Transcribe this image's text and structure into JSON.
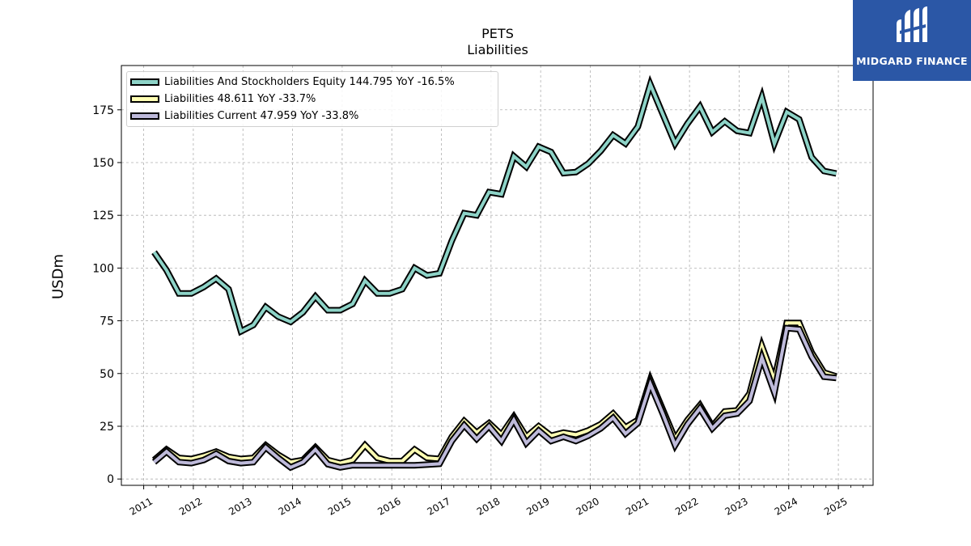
{
  "chart_data": {
    "type": "line",
    "title": "PETS",
    "subtitle": "Liabilities",
    "xlabel": "",
    "ylabel": "USDm",
    "xlim": [
      2010.55,
      2025.7
    ],
    "ylim": [
      -3,
      196
    ],
    "yticks": [
      0,
      25,
      50,
      75,
      100,
      125,
      150,
      175
    ],
    "xticks": [
      "2011",
      "2012",
      "2013",
      "2014",
      "2015",
      "2016",
      "2017",
      "2018",
      "2019",
      "2020",
      "2021",
      "2022",
      "2023",
      "2024",
      "2025"
    ],
    "grid": true,
    "legend_position": "top-left",
    "series": [
      {
        "name": "Liabilities And Stockholders Equity",
        "legend_label": "Liabilities And Stockholders Equity  144.795 YoY -16.5%",
        "color": "#8dd3c7",
        "points": [
          [
            2011.21,
            107.5
          ],
          [
            2011.46,
            99
          ],
          [
            2011.71,
            88
          ],
          [
            2011.96,
            88
          ],
          [
            2012.21,
            91
          ],
          [
            2012.46,
            95
          ],
          [
            2012.71,
            90
          ],
          [
            2012.96,
            70
          ],
          [
            2013.21,
            73
          ],
          [
            2013.46,
            81.5
          ],
          [
            2013.71,
            77
          ],
          [
            2013.96,
            74.5
          ],
          [
            2014.21,
            79
          ],
          [
            2014.46,
            86.5
          ],
          [
            2014.71,
            80
          ],
          [
            2014.96,
            80
          ],
          [
            2015.21,
            83
          ],
          [
            2015.46,
            94
          ],
          [
            2015.71,
            88
          ],
          [
            2015.96,
            88
          ],
          [
            2016.21,
            90
          ],
          [
            2016.46,
            100
          ],
          [
            2016.71,
            96.5
          ],
          [
            2016.96,
            97.5
          ],
          [
            2017.21,
            113
          ],
          [
            2017.46,
            126
          ],
          [
            2017.71,
            125
          ],
          [
            2017.96,
            136
          ],
          [
            2018.21,
            135
          ],
          [
            2018.46,
            153
          ],
          [
            2018.71,
            148
          ],
          [
            2018.96,
            157.5
          ],
          [
            2019.21,
            155
          ],
          [
            2019.46,
            145
          ],
          [
            2019.71,
            145.5
          ],
          [
            2019.96,
            149.5
          ],
          [
            2020.21,
            155.5
          ],
          [
            2020.46,
            163
          ],
          [
            2020.71,
            159
          ],
          [
            2020.96,
            167
          ],
          [
            2021.21,
            187
          ],
          [
            2021.46,
            173
          ],
          [
            2021.71,
            159
          ],
          [
            2021.96,
            168.5
          ],
          [
            2022.21,
            176.5
          ],
          [
            2022.46,
            164.5
          ],
          [
            2022.71,
            169.5
          ],
          [
            2022.96,
            165
          ],
          [
            2023.21,
            164
          ],
          [
            2023.46,
            181
          ],
          [
            2023.71,
            159
          ],
          [
            2023.96,
            174
          ],
          [
            2024.21,
            170.5
          ],
          [
            2024.46,
            152.5
          ],
          [
            2024.71,
            146
          ],
          [
            2024.96,
            144.8
          ]
        ]
      },
      {
        "name": "Liabilities",
        "legend_label": "Liabilities  48.611 YoY -33.7%",
        "color": "#ffffb3",
        "points": [
          [
            2011.21,
            9
          ],
          [
            2011.46,
            14
          ],
          [
            2011.71,
            10
          ],
          [
            2011.96,
            9.5
          ],
          [
            2012.21,
            11
          ],
          [
            2012.46,
            13
          ],
          [
            2012.71,
            10.5
          ],
          [
            2012.96,
            9.5
          ],
          [
            2013.21,
            10
          ],
          [
            2013.46,
            16
          ],
          [
            2013.71,
            11.5
          ],
          [
            2013.96,
            8
          ],
          [
            2014.21,
            9
          ],
          [
            2014.46,
            15
          ],
          [
            2014.71,
            9
          ],
          [
            2014.96,
            7.5
          ],
          [
            2015.21,
            9
          ],
          [
            2015.46,
            16
          ],
          [
            2015.71,
            10
          ],
          [
            2015.96,
            8.5
          ],
          [
            2016.21,
            8.5
          ],
          [
            2016.46,
            14
          ],
          [
            2016.71,
            10
          ],
          [
            2016.96,
            9.5
          ],
          [
            2017.21,
            20
          ],
          [
            2017.46,
            27.5
          ],
          [
            2017.71,
            22
          ],
          [
            2017.96,
            26.5
          ],
          [
            2018.21,
            21
          ],
          [
            2018.46,
            29.5
          ],
          [
            2018.71,
            20
          ],
          [
            2018.96,
            25
          ],
          [
            2019.21,
            20.5
          ],
          [
            2019.46,
            22
          ],
          [
            2019.71,
            21
          ],
          [
            2019.96,
            23
          ],
          [
            2020.21,
            26
          ],
          [
            2020.46,
            31
          ],
          [
            2020.71,
            24.5
          ],
          [
            2020.96,
            28
          ],
          [
            2021.21,
            47
          ],
          [
            2021.46,
            33
          ],
          [
            2021.71,
            19
          ],
          [
            2021.96,
            28
          ],
          [
            2022.21,
            35
          ],
          [
            2022.46,
            25
          ],
          [
            2022.71,
            32
          ],
          [
            2022.96,
            32.5
          ],
          [
            2023.21,
            40.5
          ],
          [
            2023.46,
            63
          ],
          [
            2023.71,
            47
          ],
          [
            2023.96,
            74
          ],
          [
            2024.21,
            74
          ],
          [
            2024.46,
            60
          ],
          [
            2024.71,
            50.5
          ],
          [
            2024.96,
            48.6
          ]
        ]
      },
      {
        "name": "Liabilities Current",
        "legend_label": "Liabilities Current  47.959 YoY -33.8%",
        "color": "#bebada",
        "points": [
          [
            2011.21,
            8
          ],
          [
            2011.46,
            13
          ],
          [
            2011.71,
            8
          ],
          [
            2011.96,
            7.5
          ],
          [
            2012.21,
            9
          ],
          [
            2012.46,
            12
          ],
          [
            2012.71,
            8.5
          ],
          [
            2012.96,
            7.5
          ],
          [
            2013.21,
            8
          ],
          [
            2013.46,
            15
          ],
          [
            2013.71,
            10
          ],
          [
            2013.96,
            5.5
          ],
          [
            2014.21,
            8
          ],
          [
            2014.46,
            14
          ],
          [
            2014.71,
            7
          ],
          [
            2014.96,
            5.5
          ],
          [
            2015.21,
            6.5
          ],
          [
            2015.46,
            6.5
          ],
          [
            2015.71,
            6.5
          ],
          [
            2015.96,
            6.5
          ],
          [
            2016.21,
            6.5
          ],
          [
            2016.46,
            6.5
          ],
          [
            2016.71,
            6.8
          ],
          [
            2016.96,
            7.2
          ],
          [
            2017.21,
            18
          ],
          [
            2017.46,
            25.5
          ],
          [
            2017.71,
            19
          ],
          [
            2017.96,
            25
          ],
          [
            2018.21,
            18
          ],
          [
            2018.46,
            28
          ],
          [
            2018.71,
            17
          ],
          [
            2018.96,
            23
          ],
          [
            2019.21,
            18
          ],
          [
            2019.46,
            20
          ],
          [
            2019.71,
            18
          ],
          [
            2019.96,
            20.5
          ],
          [
            2020.21,
            24
          ],
          [
            2020.46,
            29
          ],
          [
            2020.71,
            21.5
          ],
          [
            2020.96,
            26.5
          ],
          [
            2021.21,
            45
          ],
          [
            2021.46,
            31
          ],
          [
            2021.71,
            16
          ],
          [
            2021.96,
            26
          ],
          [
            2022.21,
            33.5
          ],
          [
            2022.46,
            24
          ],
          [
            2022.71,
            30
          ],
          [
            2022.96,
            31
          ],
          [
            2023.21,
            37
          ],
          [
            2023.46,
            57.5
          ],
          [
            2023.71,
            41
          ],
          [
            2023.96,
            71.5
          ],
          [
            2024.21,
            71
          ],
          [
            2024.46,
            58
          ],
          [
            2024.71,
            48.5
          ],
          [
            2024.96,
            47.9
          ]
        ]
      }
    ]
  },
  "brand": {
    "name": "MIDGARD FINANCE",
    "logo_icon": "midgard-logo-icon",
    "background": "#2b57a6"
  }
}
